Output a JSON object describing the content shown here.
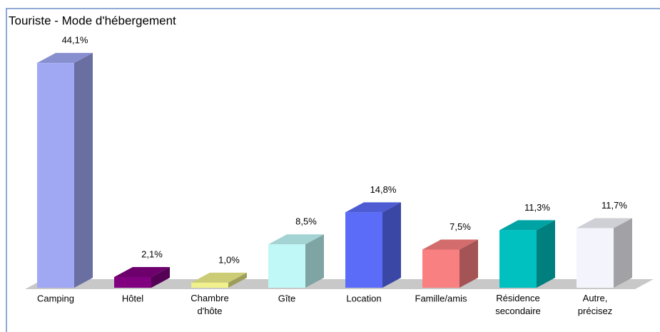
{
  "chart_data": {
    "type": "bar3d",
    "title": "Touriste - Mode d'hébergement",
    "categories": [
      "Camping",
      "Hôtel",
      "Chambre d'hôte",
      "Gîte",
      "Location",
      "Famille/amis",
      "Résidence secondaire",
      "Autre, précisez"
    ],
    "values": [
      44.1,
      2.1,
      1.0,
      8.5,
      14.8,
      7.5,
      11.3,
      11.7
    ],
    "value_labels": [
      "44,1%",
      "2,1%",
      "1,0%",
      "8,5%",
      "14,8%",
      "7,5%",
      "11,3%",
      "11,7%"
    ],
    "colors": [
      "#a0a8f4",
      "#800080",
      "#f0f08c",
      "#c0f8f8",
      "#5a6cf8",
      "#f88080",
      "#00c0c0",
      "#f4f4fc"
    ]
  }
}
